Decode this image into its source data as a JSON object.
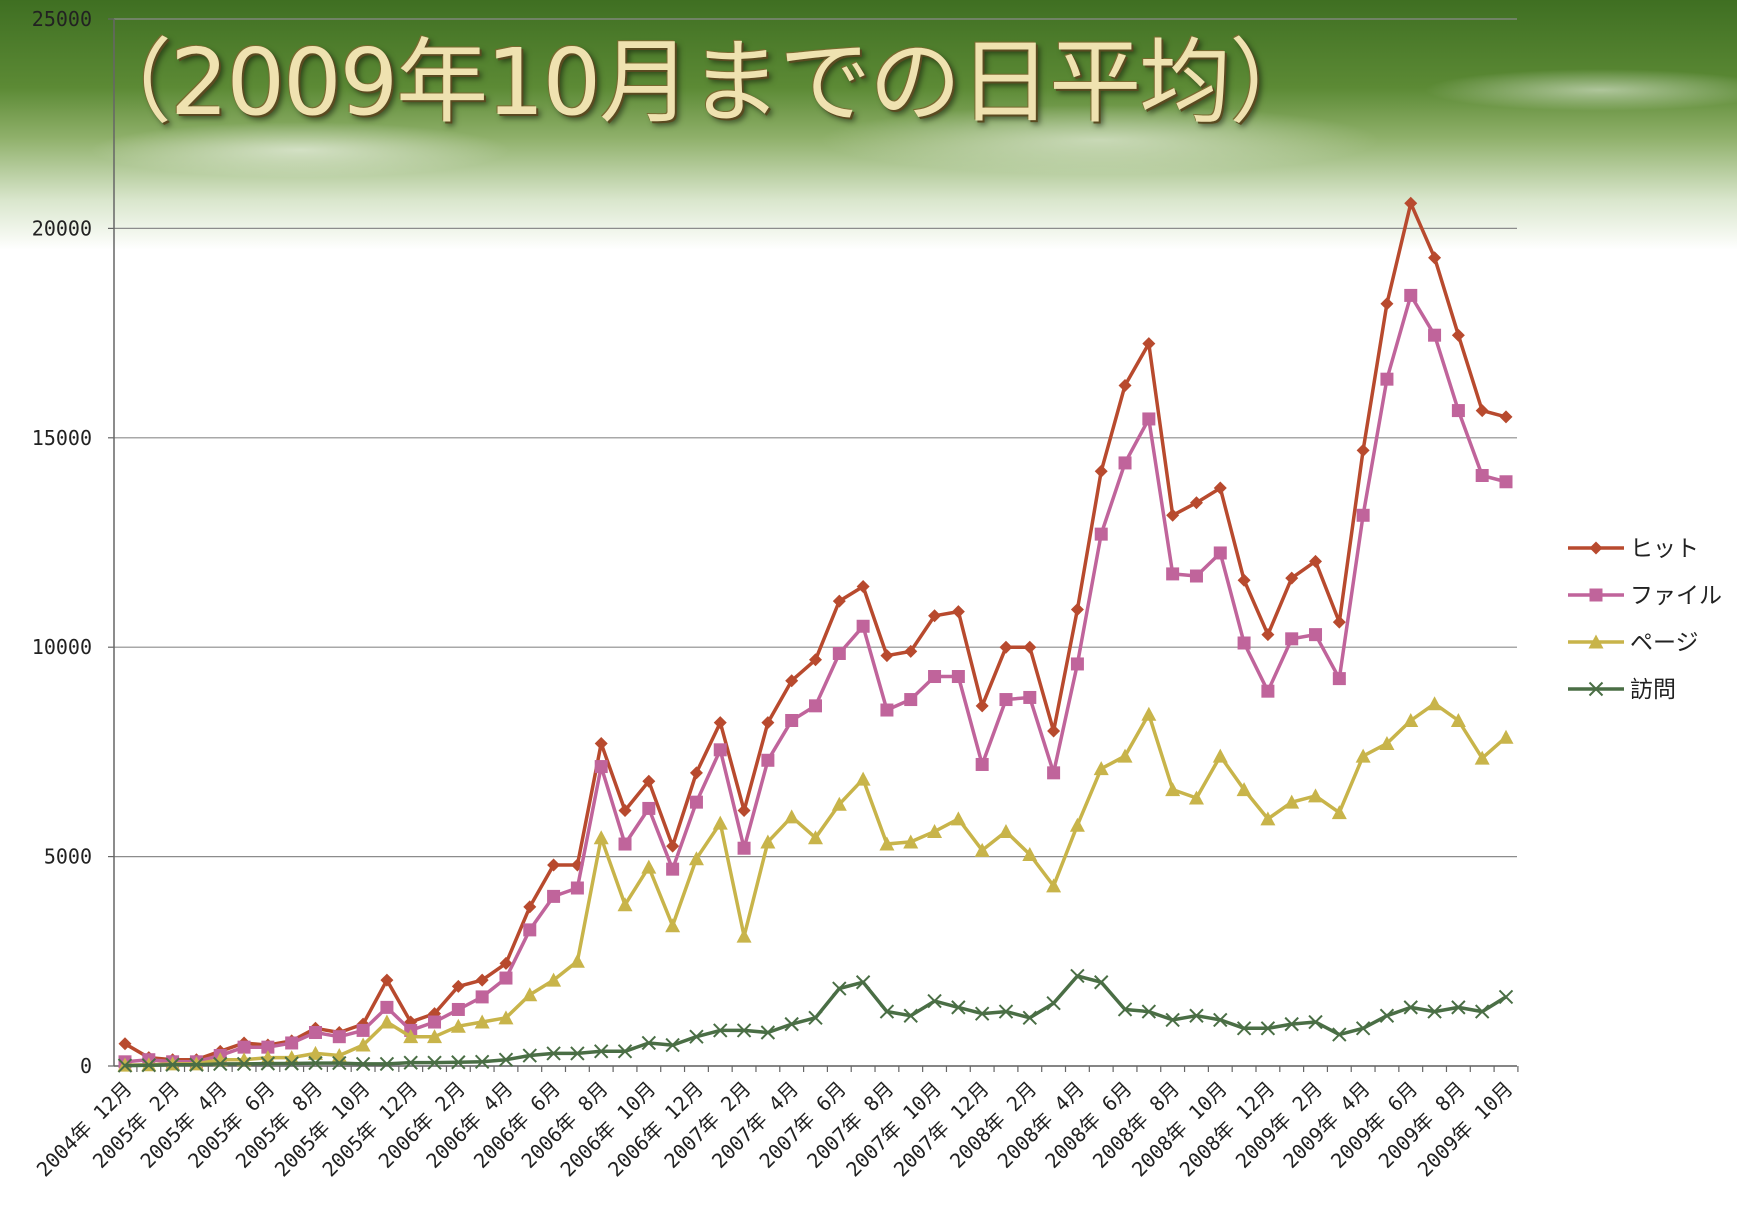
{
  "chart_data": {
    "type": "line",
    "title": "（2009年10月までの日平均）",
    "categories": [
      "2004年 12月",
      null,
      "2005年 2月",
      null,
      "2005年 4月",
      null,
      "2005年 6月",
      null,
      "2005年 8月",
      null,
      "2005年 10月",
      null,
      "2005年 12月",
      null,
      "2006年 2月",
      null,
      "2006年 4月",
      null,
      "2006年 6月",
      null,
      "2006年 8月",
      null,
      "2006年 10月",
      null,
      "2006年 12月",
      null,
      "2007年 2月",
      null,
      "2007年 4月",
      null,
      "2007年 6月",
      null,
      "2007年 8月",
      null,
      "2007年 10月",
      null,
      "2007年 12月",
      null,
      "2008年 2月",
      null,
      "2008年 4月",
      null,
      "2008年 6月",
      null,
      "2008年 8月",
      null,
      "2008年 10月",
      null,
      "2008年 12月",
      null,
      "2009年 2月",
      null,
      "2009年 4月",
      null,
      "2009年 6月",
      null,
      "2009年 8月",
      null,
      "2009年 10月"
    ],
    "series": [
      {
        "name": "ヒット",
        "color": "#b84a2e",
        "marker": "diamond",
        "values": [
          530,
          200,
          150,
          150,
          350,
          550,
          500,
          600,
          900,
          800,
          1000,
          2050,
          1050,
          1250,
          1900,
          2050,
          2450,
          3800,
          4800,
          4800,
          7700,
          6100,
          6800,
          5250,
          7000,
          8200,
          6100,
          8200,
          9200,
          9700,
          11100,
          11450,
          9800,
          9900,
          10750,
          10850,
          8600,
          10000,
          10000,
          8000,
          10900,
          14200,
          16250,
          17250,
          13150,
          13450,
          13800,
          11600,
          10300,
          11650,
          12050,
          10600,
          14700,
          18200,
          20600,
          19300,
          17450,
          15650,
          15500
        ]
      },
      {
        "name": "ファイル",
        "color": "#c0649b",
        "marker": "square",
        "values": [
          100,
          150,
          100,
          100,
          250,
          450,
          450,
          550,
          800,
          700,
          850,
          1400,
          850,
          1050,
          1350,
          1650,
          2100,
          3250,
          4050,
          4250,
          7150,
          5300,
          6150,
          4700,
          6300,
          7550,
          5200,
          7300,
          8250,
          8600,
          9850,
          10500,
          8500,
          8750,
          9300,
          9300,
          7200,
          8750,
          8800,
          7000,
          9600,
          12700,
          14400,
          15450,
          11750,
          11700,
          12250,
          10100,
          8950,
          10200,
          10300,
          9250,
          13150,
          16400,
          18400,
          17450,
          15650,
          14100,
          13950
        ]
      },
      {
        "name": "ページ",
        "color": "#c8b44a",
        "marker": "triangle",
        "values": [
          20,
          30,
          50,
          50,
          150,
          150,
          200,
          200,
          300,
          250,
          500,
          1050,
          700,
          700,
          950,
          1050,
          1150,
          1700,
          2050,
          2500,
          5450,
          3850,
          4750,
          3350,
          4950,
          5800,
          3100,
          5350,
          5950,
          5450,
          6250,
          6850,
          5300,
          5350,
          5600,
          5900,
          5150,
          5600,
          5050,
          4300,
          5750,
          7100,
          7400,
          8400,
          6600,
          6400,
          7400,
          6600,
          5900,
          6300,
          6450,
          6050,
          7400,
          7700,
          8250,
          8650,
          8250,
          7350,
          7850
        ]
      },
      {
        "name": "訪問",
        "color": "#4a6e45",
        "marker": "x",
        "values": [
          10,
          20,
          30,
          30,
          50,
          50,
          60,
          60,
          70,
          70,
          50,
          50,
          80,
          80,
          90,
          100,
          150,
          250,
          300,
          300,
          350,
          350,
          550,
          500,
          700,
          850,
          850,
          800,
          1000,
          1150,
          1850,
          2000,
          1300,
          1200,
          1550,
          1400,
          1250,
          1300,
          1150,
          1500,
          2150,
          2000,
          1350,
          1300,
          1100,
          1200,
          1100,
          900,
          900,
          1000,
          1050,
          750,
          900,
          1200,
          1400,
          1300,
          1400,
          1300,
          1650
        ]
      }
    ],
    "ylim": [
      0,
      25000
    ],
    "yticks": [
      0,
      5000,
      10000,
      15000,
      20000,
      25000
    ],
    "grid": true,
    "legend": "right"
  }
}
